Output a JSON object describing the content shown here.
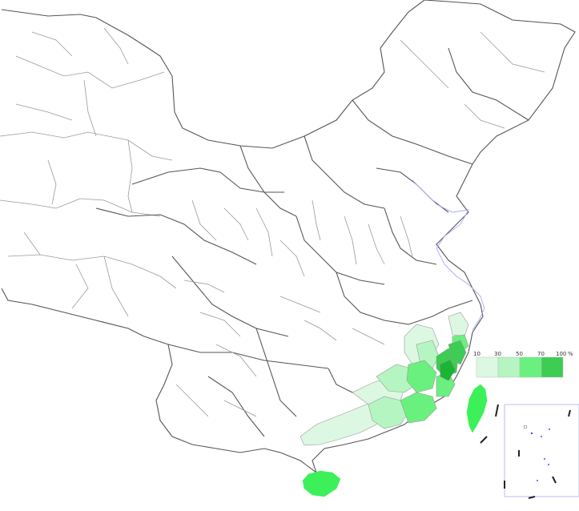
{
  "legend": {
    "unit": "%",
    "ticks": [
      "10",
      "30",
      "50",
      "70",
      "100"
    ],
    "classes": [
      {
        "range": "10–30",
        "color": "#dcf8e2"
      },
      {
        "range": "30–50",
        "color": "#b5f5c1"
      },
      {
        "range": "50–70",
        "color": "#6af07f"
      },
      {
        "range": "70–100",
        "color": "#3ccd52"
      }
    ]
  },
  "colors": {
    "border": "#9a9a9a",
    "province_border": "#555555",
    "coastline": "#a9a9ff",
    "class_1": "#dcf8e2",
    "class_2": "#b5f5c1",
    "class_3": "#6af07f",
    "class_4": "#3ccd52",
    "class_5": "#19b534"
  }
}
